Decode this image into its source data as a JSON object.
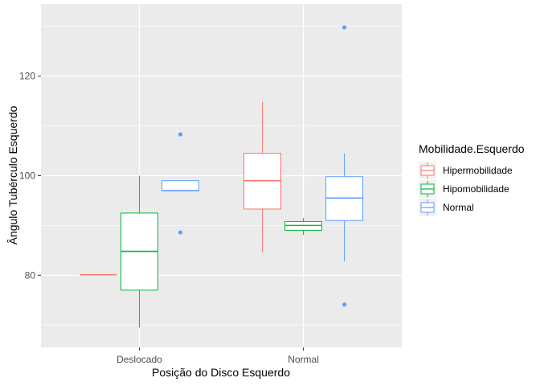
{
  "chart_data": {
    "type": "box",
    "xlabel": "Posição do Disco Esquerdo",
    "ylabel": "Ângulo Tubérculo Esquerdo",
    "categories": [
      "Deslocado",
      "Normal"
    ],
    "ylim": [
      65.5,
      134.5
    ],
    "y_ticks": [
      80,
      100,
      120
    ],
    "grid": true,
    "legend": {
      "title": "Mobilidade.Esquerdo",
      "position": "right"
    },
    "series": [
      {
        "name": "Hipermobilidade",
        "color": "#F8766D",
        "boxes": [
          {
            "category": "Deslocado",
            "min": 80.1,
            "q1": 80.1,
            "median": 80.1,
            "q3": 80.1,
            "max": 80.1,
            "outliers": []
          },
          {
            "category": "Normal",
            "min": 84.7,
            "q1": 93.3,
            "median": 99.0,
            "q3": 104.5,
            "max": 114.8,
            "outliers": []
          }
        ]
      },
      {
        "name": "Hipomobilidade",
        "color": "#00BA38",
        "boxes": [
          {
            "category": "Deslocado",
            "min": 69.5,
            "q1": 77.0,
            "median": 84.8,
            "q3": 92.5,
            "max": 100.0,
            "outliers": []
          },
          {
            "category": "Normal",
            "min": 88.1,
            "q1": 89.0,
            "median": 90.0,
            "q3": 90.8,
            "max": 91.5,
            "outliers": []
          }
        ]
      },
      {
        "name": "Normal",
        "color": "#619CFF",
        "boxes": [
          {
            "category": "Deslocado",
            "min": 97.0,
            "q1": 97.0,
            "median": 97.0,
            "q3": 99.0,
            "max": 99.0,
            "outliers": [
              108.3,
              88.6
            ]
          },
          {
            "category": "Normal",
            "min": 82.8,
            "q1": 91.0,
            "median": 95.5,
            "q3": 99.8,
            "max": 104.5,
            "outliers": [
              129.8,
              74.1
            ]
          }
        ]
      }
    ]
  }
}
